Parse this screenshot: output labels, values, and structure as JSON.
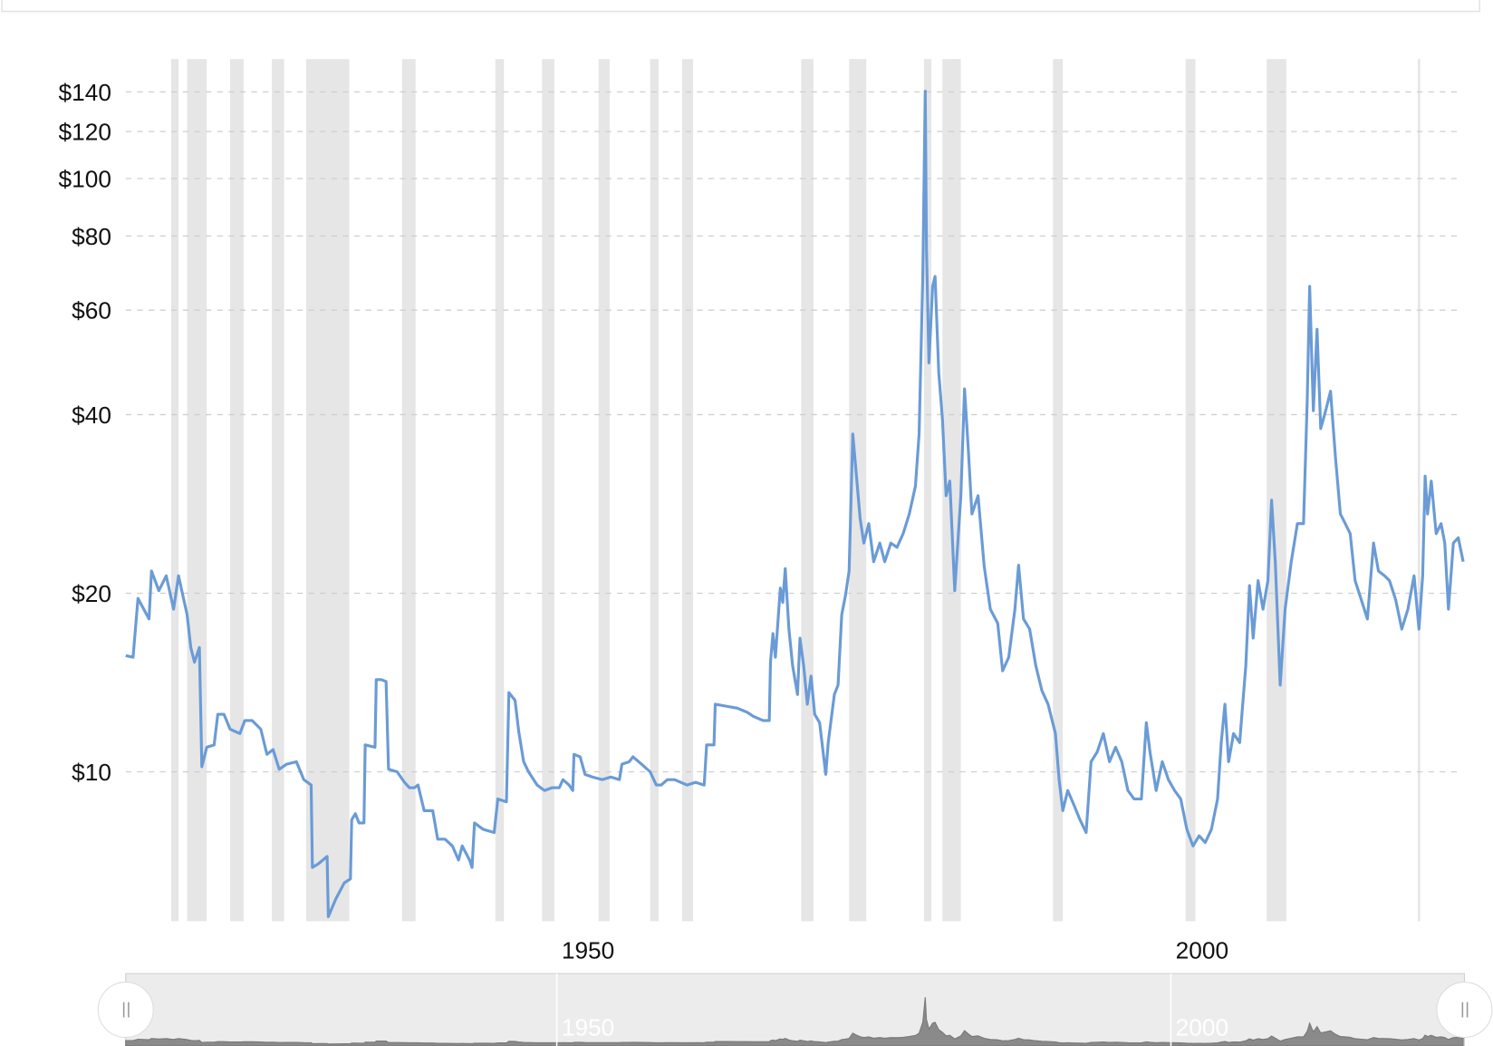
{
  "chart_data": {
    "type": "line",
    "y_scale": "log",
    "grid": true,
    "color": "#6a9bd6",
    "band_color": "#e6e6e6",
    "xlim": [
      1914.9,
      2023.9
    ],
    "ylim": [
      5.6,
      159
    ],
    "xticks": [
      1950,
      2000
    ],
    "yticks": [
      {
        "value": 10,
        "label": "$10"
      },
      {
        "value": 20,
        "label": "$20"
      },
      {
        "value": 40,
        "label": "$40"
      },
      {
        "value": 60,
        "label": "$60"
      },
      {
        "value": 80,
        "label": "$80"
      },
      {
        "value": 100,
        "label": "$100"
      },
      {
        "value": 120,
        "label": "$120"
      },
      {
        "value": 140,
        "label": "$140"
      }
    ],
    "recessions": [
      [
        1918.6,
        1919.2
      ],
      [
        1919.9,
        1921.5
      ],
      [
        1923.4,
        1924.5
      ],
      [
        1926.8,
        1927.8
      ],
      [
        1929.6,
        1933.1
      ],
      [
        1937.4,
        1938.5
      ],
      [
        1945.0,
        1945.7
      ],
      [
        1948.8,
        1949.8
      ],
      [
        1953.4,
        1954.3
      ],
      [
        1957.6,
        1958.3
      ],
      [
        1960.2,
        1961.1
      ],
      [
        1969.9,
        1970.9
      ],
      [
        1973.8,
        1975.2
      ],
      [
        1979.9,
        1980.5
      ],
      [
        1981.4,
        1982.9
      ],
      [
        1990.4,
        1991.2
      ],
      [
        2001.2,
        2002.0
      ],
      [
        2007.8,
        2009.4
      ],
      [
        2020.1,
        2020.3
      ]
    ],
    "x": [
      1914.9,
      1915.5,
      1915.9,
      1916.8,
      1917.0,
      1917.6,
      1918.2,
      1918.8,
      1919.2,
      1919.9,
      1920.2,
      1920.5,
      1920.9,
      1921.1,
      1921.5,
      1922.1,
      1922.4,
      1922.9,
      1923.4,
      1924.2,
      1924.6,
      1925.2,
      1925.9,
      1926.4,
      1926.9,
      1927.4,
      1928.0,
      1928.8,
      1929.4,
      1930.0,
      1930.1,
      1930.6,
      1931.3,
      1931.4,
      1932.0,
      1932.7,
      1933.2,
      1933.3,
      1933.6,
      1933.9,
      1934.3,
      1934.4,
      1935.2,
      1935.3,
      1935.7,
      1936.1,
      1936.3,
      1937.0,
      1937.6,
      1938.0,
      1938.4,
      1938.7,
      1939.2,
      1939.9,
      1940.3,
      1940.9,
      1941.5,
      1942.0,
      1942.3,
      1942.9,
      1943.1,
      1943.3,
      1944.0,
      1944.9,
      1945.2,
      1945.9,
      1946.1,
      1946.6,
      1946.9,
      1947.3,
      1947.7,
      1948.4,
      1949.0,
      1949.6,
      1950.2,
      1950.5,
      1951.0,
      1951.3,
      1951.4,
      1951.9,
      1952.3,
      1952.9,
      1953.7,
      1954.4,
      1955.1,
      1955.3,
      1955.9,
      1956.2,
      1956.9,
      1957.6,
      1958.1,
      1958.5,
      1959.0,
      1959.6,
      1960.6,
      1961.3,
      1962.0,
      1962.2,
      1962.8,
      1962.9,
      1963.8,
      1964.7,
      1965.5,
      1966.0,
      1966.8,
      1967.3,
      1967.4,
      1967.6,
      1967.8,
      1968.2,
      1968.4,
      1968.6,
      1968.9,
      1969.2,
      1969.6,
      1969.8,
      1970.1,
      1970.4,
      1970.7,
      1971.0,
      1971.4,
      1971.9,
      1972.1,
      1972.6,
      1972.9,
      1973.2,
      1973.5,
      1973.8,
      1974.1,
      1974.4,
      1974.7,
      1975.0,
      1975.4,
      1975.8,
      1976.3,
      1976.7,
      1977.2,
      1977.7,
      1978.2,
      1978.7,
      1979.2,
      1979.5,
      1979.8,
      1980.0,
      1980.1,
      1980.3,
      1980.6,
      1980.8,
      1981.1,
      1981.4,
      1981.7,
      1982.0,
      1982.4,
      1982.9,
      1983.2,
      1983.5,
      1983.8,
      1984.3,
      1984.8,
      1985.3,
      1985.9,
      1986.3,
      1986.8,
      1987.3,
      1987.6,
      1988.0,
      1988.5,
      1989.0,
      1989.5,
      1990.0,
      1990.6,
      1990.9,
      1991.2,
      1991.6,
      1992.1,
      1992.6,
      1993.1,
      1993.5,
      1994.0,
      1994.5,
      1995.0,
      1995.5,
      1996.0,
      1996.5,
      1997.0,
      1997.6,
      1998.0,
      1998.3,
      1998.8,
      1999.3,
      1999.8,
      2000.3,
      2000.8,
      2001.3,
      2001.8,
      2002.3,
      2002.8,
      2003.3,
      2003.8,
      2004.1,
      2004.4,
      2004.7,
      2005.1,
      2005.6,
      2006.1,
      2006.4,
      2006.7,
      2007.1,
      2007.5,
      2007.9,
      2008.2,
      2008.5,
      2008.9,
      2009.3,
      2009.8,
      2010.3,
      2010.8,
      2011.1,
      2011.3,
      2011.6,
      2011.9,
      2012.2,
      2012.6,
      2013.0,
      2013.4,
      2013.8,
      2014.2,
      2014.6,
      2015.0,
      2015.5,
      2016.0,
      2016.5,
      2016.9,
      2017.4,
      2017.8,
      2018.3,
      2018.8,
      2019.3,
      2019.8,
      2020.2,
      2020.5,
      2020.7,
      2020.9,
      2021.2,
      2021.6,
      2022.0,
      2022.3,
      2022.6,
      2023.0,
      2023.4,
      2023.8
    ],
    "values": [
      15.7,
      15.6,
      19.6,
      18.1,
      21.8,
      20.2,
      21.4,
      18.8,
      21.4,
      18.4,
      16.2,
      15.3,
      16.2,
      10.2,
      11.0,
      11.1,
      12.5,
      12.5,
      11.8,
      11.6,
      12.2,
      12.2,
      11.8,
      10.7,
      10.9,
      10.1,
      10.3,
      10.4,
      9.7,
      9.5,
      6.9,
      7.0,
      7.2,
      5.7,
      6.1,
      6.5,
      6.6,
      8.3,
      8.5,
      8.2,
      8.2,
      11.1,
      11.0,
      14.3,
      14.3,
      14.2,
      10.1,
      10.0,
      9.6,
      9.4,
      9.4,
      9.5,
      8.6,
      8.6,
      7.7,
      7.7,
      7.5,
      7.1,
      7.5,
      7.1,
      6.9,
      8.2,
      8.0,
      7.9,
      9.0,
      8.9,
      13.6,
      13.2,
      11.7,
      10.4,
      10.0,
      9.5,
      9.3,
      9.4,
      9.4,
      9.7,
      9.5,
      9.3,
      10.7,
      10.6,
      9.9,
      9.8,
      9.7,
      9.8,
      9.7,
      10.3,
      10.4,
      10.6,
      10.3,
      10.0,
      9.5,
      9.5,
      9.7,
      9.7,
      9.5,
      9.6,
      9.5,
      11.1,
      11.1,
      13.0,
      12.9,
      12.8,
      12.6,
      12.4,
      12.2,
      12.2,
      15.3,
      17.1,
      15.6,
      20.4,
      19.3,
      22.0,
      17.4,
      15.1,
      13.5,
      16.8,
      15.1,
      13.0,
      14.5,
      12.5,
      12.1,
      9.9,
      11.2,
      13.5,
      14.0,
      18.4,
      19.8,
      21.8,
      37.1,
      31.5,
      26.7,
      24.3,
      26.2,
      22.6,
      24.3,
      22.6,
      24.3,
      23.9,
      25.2,
      27.2,
      30.3,
      37.1,
      68.4,
      140.4,
      76.4,
      48.9,
      65.8,
      68.4,
      47.1,
      39.3,
      29.2,
      30.9,
      20.2,
      29.2,
      44.2,
      35.1,
      27.2,
      29.2,
      22.2,
      18.8,
      17.8,
      14.8,
      15.6,
      18.8,
      22.3,
      18.1,
      17.4,
      15.1,
      13.7,
      13.0,
      11.6,
      9.7,
      8.6,
      9.3,
      8.8,
      8.3,
      7.9,
      10.4,
      10.8,
      11.6,
      10.4,
      11.0,
      10.4,
      9.3,
      9.0,
      9.0,
      12.1,
      10.8,
      9.3,
      10.4,
      9.7,
      9.3,
      9.0,
      8.0,
      7.5,
      7.8,
      7.6,
      8.0,
      9.0,
      11.2,
      13.0,
      10.4,
      11.6,
      11.2,
      15.1,
      20.6,
      16.8,
      21.0,
      18.8,
      21.0,
      28.7,
      22.6,
      14.0,
      18.8,
      22.6,
      26.2,
      26.2,
      42.2,
      65.8,
      40.6,
      55.7,
      37.9,
      40.6,
      43.8,
      33.9,
      27.2,
      26.2,
      25.2,
      21.0,
      19.5,
      18.1,
      24.3,
      21.8,
      21.4,
      21.0,
      19.5,
      17.4,
      18.8,
      21.4,
      17.4,
      21.4,
      31.5,
      27.2,
      30.9,
      25.2,
      26.2,
      24.3,
      18.8,
      24.3,
      24.8,
      22.6
    ]
  }
}
